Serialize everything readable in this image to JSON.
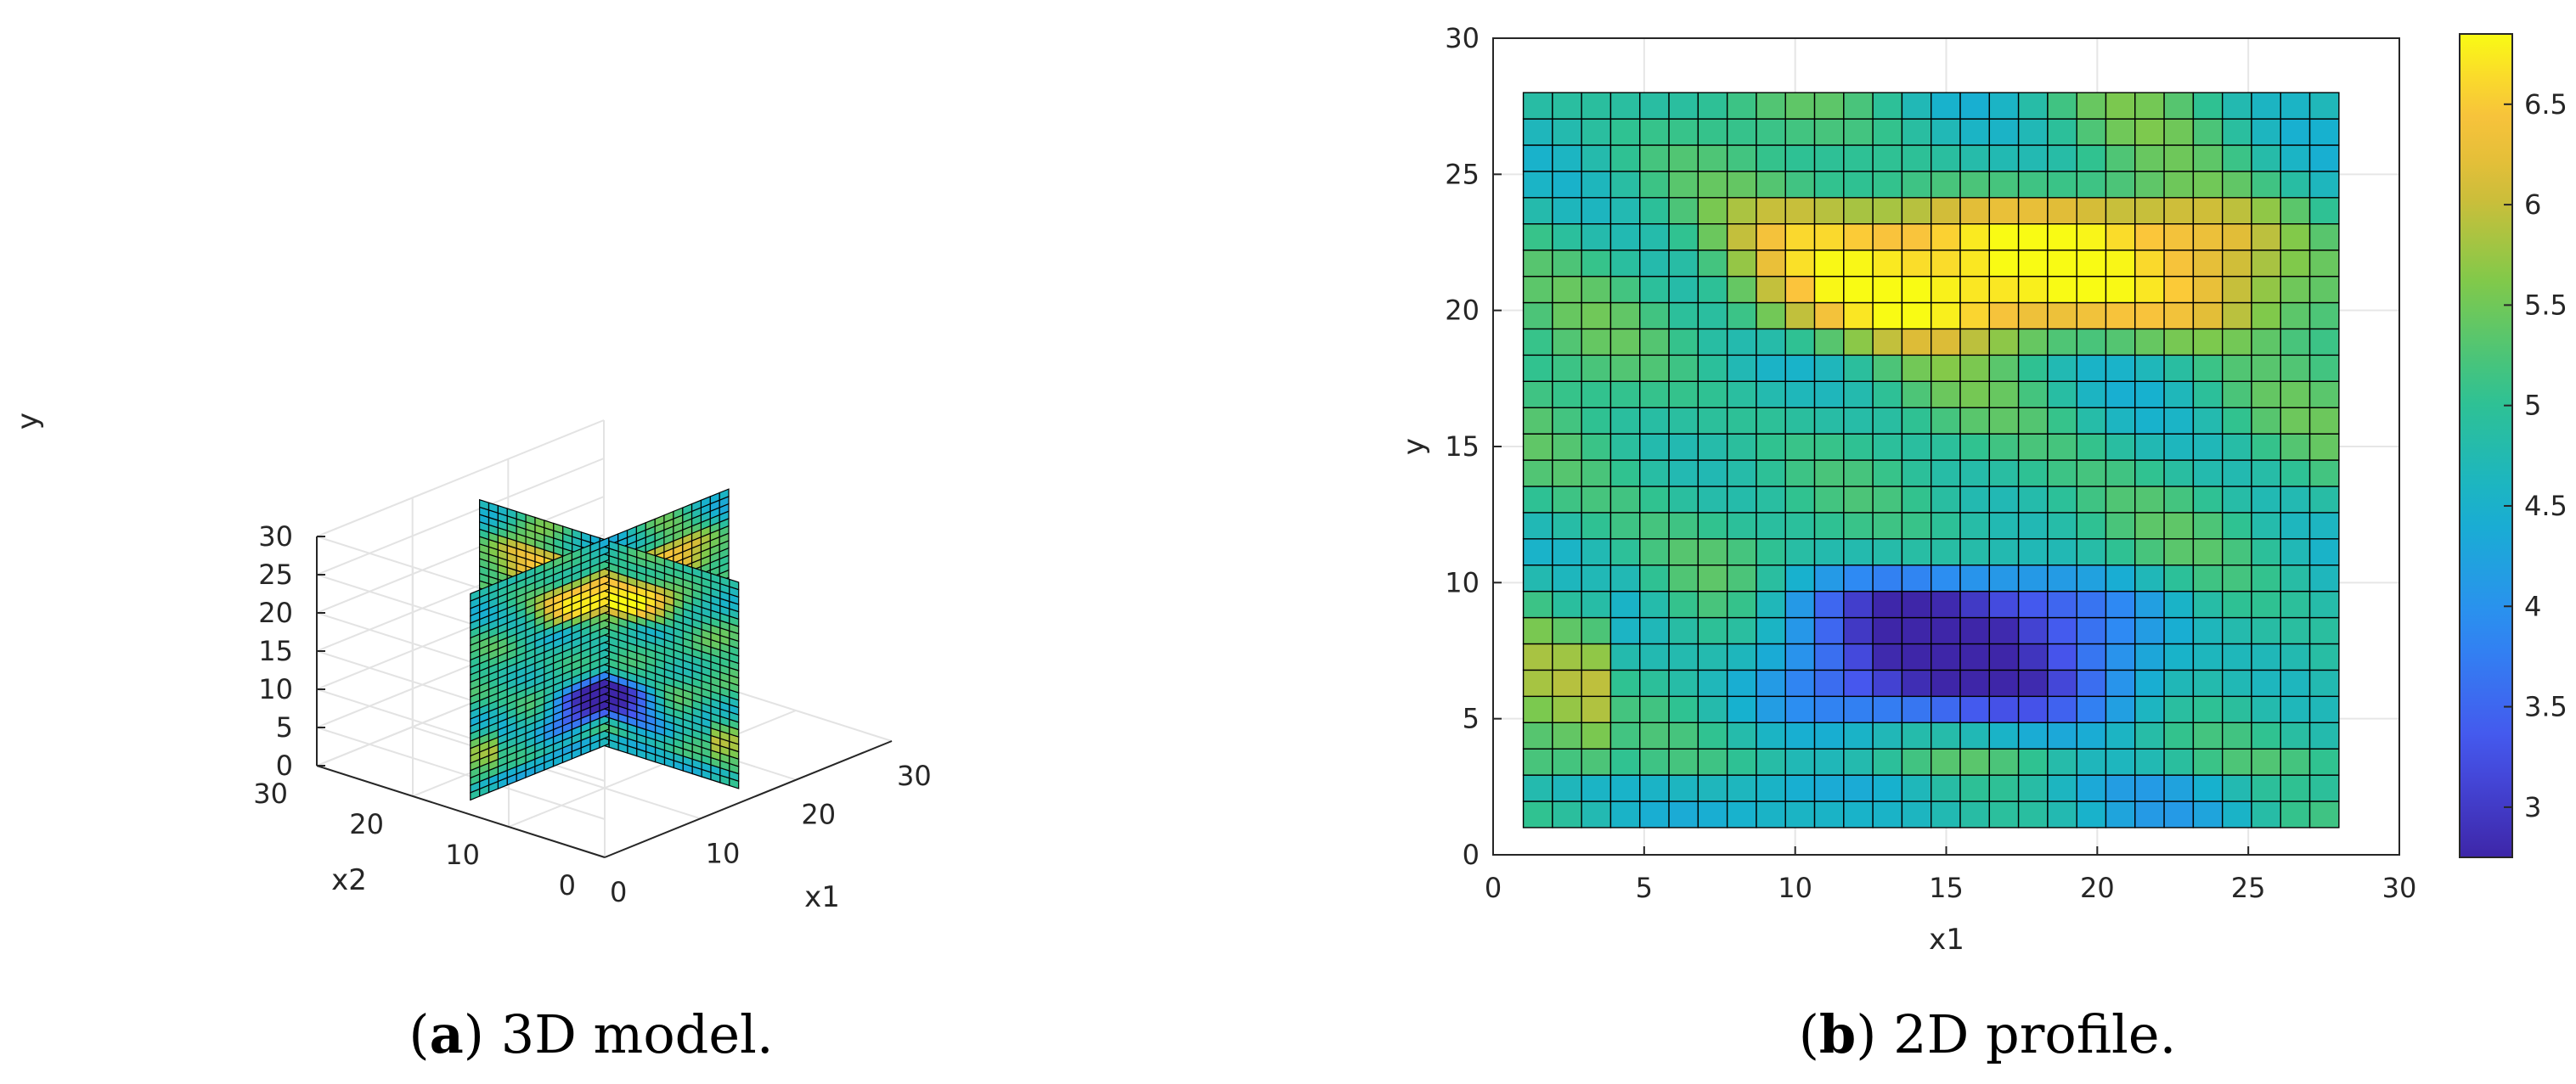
{
  "captions": {
    "a": {
      "letter": "a",
      "text": "3D model."
    },
    "b": {
      "letter": "b",
      "text": "2D profile."
    }
  },
  "chart_data": [
    {
      "id": "a",
      "type": "3d-slices",
      "xlabel": "x1",
      "ylabel": "x2",
      "zlabel": "y",
      "xlim": [
        0,
        30
      ],
      "ylim": [
        0,
        30
      ],
      "zlim": [
        0,
        30
      ],
      "xticks": [
        0,
        10,
        20,
        30
      ],
      "yticks": [
        0,
        10,
        20,
        30
      ],
      "zticks": [
        0,
        5,
        10,
        15,
        20,
        25,
        30
      ],
      "grid": true,
      "slices": [
        "x1 = 15 plane",
        "x2 = 15 plane"
      ],
      "features": {
        "high_band_y": [
          19,
          24
        ],
        "low_band_y": [
          5,
          10
        ]
      }
    },
    {
      "id": "b",
      "type": "heatmap",
      "xlabel": "x1",
      "ylabel": "y",
      "xlim": [
        0,
        30
      ],
      "ylim": [
        0,
        30
      ],
      "xticks": [
        0,
        5,
        10,
        15,
        20,
        25,
        30
      ],
      "yticks": [
        0,
        5,
        10,
        15,
        20,
        25,
        30
      ],
      "grid": true,
      "cell_extent": [
        1,
        28
      ],
      "grid_cells": 28,
      "colormap": "parula",
      "colorbar": {
        "range": [
          2.75,
          6.85
        ],
        "ticks": [
          "3",
          "3.5",
          "4",
          "4.5",
          "5",
          "5.5",
          "6",
          "6.5"
        ]
      },
      "features": {
        "high_band": {
          "x1": [
            7,
            27
          ],
          "y": [
            19,
            24
          ],
          "value": 6.8
        },
        "low_band": {
          "x1": [
            9,
            22
          ],
          "y": [
            5,
            10
          ],
          "value": 2.9
        }
      }
    }
  ]
}
